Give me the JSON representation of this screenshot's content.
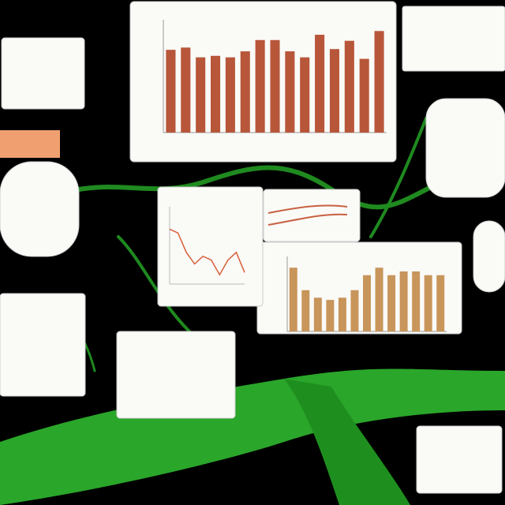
{
  "chart_data": [
    {
      "type": "bar",
      "color": "#b8563a",
      "ylim": [
        0,
        150
      ],
      "values": [
        110,
        113,
        100,
        102,
        100,
        108,
        123,
        123,
        108,
        100,
        130,
        111,
        122,
        98,
        135
      ]
    },
    {
      "type": "bar",
      "color": "#c8955a",
      "ylim": [
        0,
        100
      ],
      "values": [
        85,
        55,
        45,
        42,
        45,
        55,
        75,
        85,
        75,
        80,
        80,
        75,
        75
      ]
    },
    {
      "type": "line",
      "color": "#d9603a",
      "ylim": [
        0,
        100
      ],
      "values": [
        71,
        66,
        41,
        26,
        36,
        31,
        12,
        31,
        41,
        15
      ]
    }
  ]
}
